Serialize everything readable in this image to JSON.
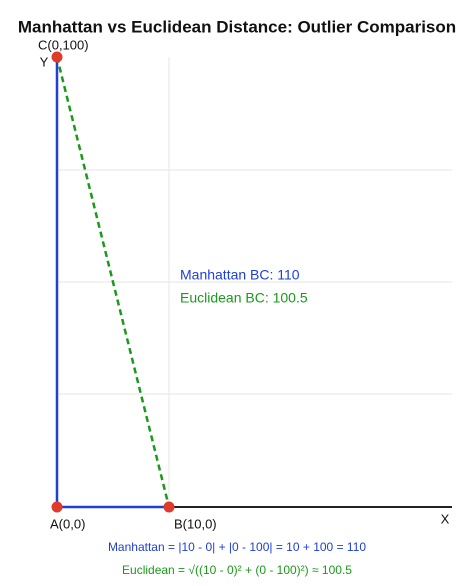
{
  "title": "Manhattan vs Euclidean Distance: Outlier Comparison",
  "axes": {
    "x": "X",
    "y": "Y"
  },
  "points": [
    {
      "label": "A(0,0)"
    },
    {
      "label": "B(10,0)"
    },
    {
      "label": "C(0,100)"
    }
  ],
  "annotations": {
    "manhattan": "Manhattan BC: 110",
    "euclidean": "Euclidean BC: 100.5"
  },
  "formulas": {
    "manhattan": "Manhattan = |10 - 0| + |0 - 100| = 10 + 100 = 110",
    "euclidean": "Euclidean = √((10 - 0)² + (0 - 100)²) ≈ 100.5"
  }
}
